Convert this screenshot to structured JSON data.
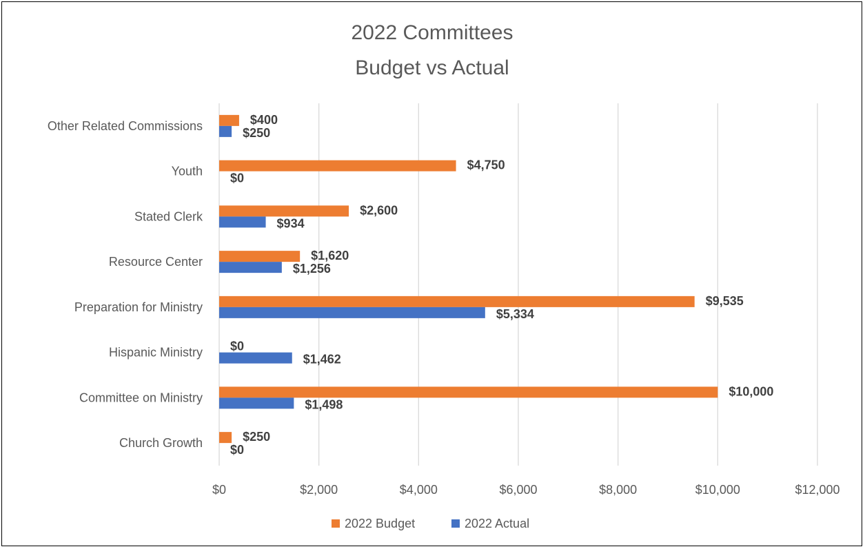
{
  "chart_data": {
    "type": "bar",
    "orientation": "horizontal",
    "title": [
      "2022 Committees",
      "Budget vs Actual"
    ],
    "categories": [
      "Church Growth",
      "Committee on Ministry",
      "Hispanic Ministry",
      "Preparation for Ministry",
      "Resource Center",
      "Stated Clerk",
      "Youth",
      "Other Related Commissions"
    ],
    "series": [
      {
        "name": "2022 Budget",
        "color": "#ED7D31",
        "values": [
          250,
          10000,
          0,
          9535,
          1620,
          2600,
          4750,
          400
        ],
        "labels": [
          "$250",
          "$10,000",
          "$0",
          "$9,535",
          "$1,620",
          "$2,600",
          "$4,750",
          "$400"
        ]
      },
      {
        "name": "2022 Actual",
        "color": "#4472C4",
        "values": [
          0,
          1498,
          1462,
          5334,
          1256,
          934,
          0,
          250
        ],
        "labels": [
          "$0",
          "$1,498",
          "$1,462",
          "$5,334",
          "$1,256",
          "$934",
          "$0",
          "$250"
        ]
      }
    ],
    "xlim": [
      0,
      12000
    ],
    "xticks": [
      0,
      2000,
      4000,
      6000,
      8000,
      10000,
      12000
    ],
    "xtick_labels": [
      "$0",
      "$2,000",
      "$4,000",
      "$6,000",
      "$8,000",
      "$10,000",
      "$12,000"
    ],
    "grid": true,
    "legend_position": "bottom"
  }
}
